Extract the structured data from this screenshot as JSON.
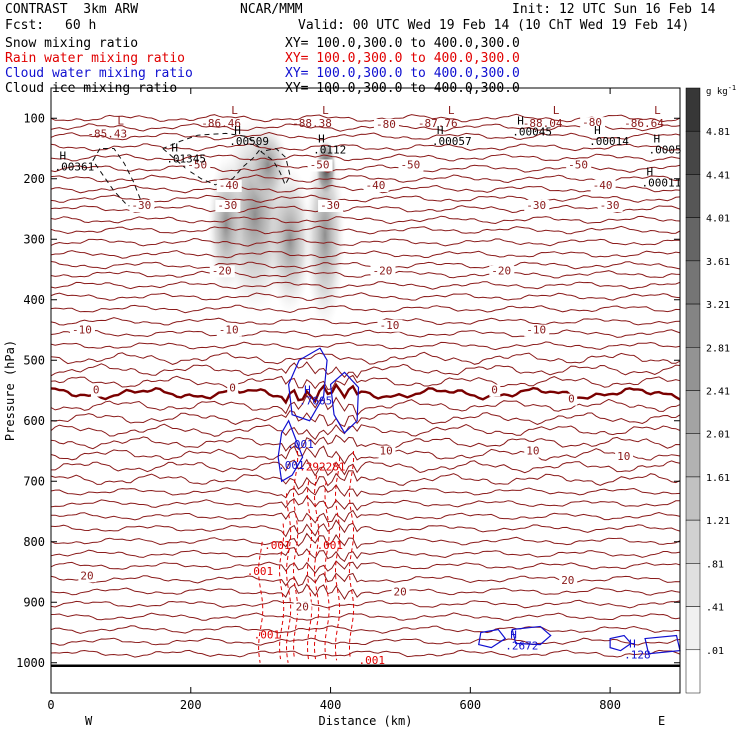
{
  "header": {
    "model": "CONTRAST  3km ARW",
    "center": "NCAR/MMM",
    "init": "Init: 12 UTC Sun 16 Feb 14",
    "fcst_label": "Fcst:",
    "fcst_value": "60 h",
    "valid": "Valid: 00 UTC Wed 19 Feb 14 (10 ChT Wed 19 Feb 14)"
  },
  "fields": [
    {
      "name": "Snow mixing ratio",
      "xy": "XY= 100.0,300.0 to 400.0,300.0",
      "color": "#000000"
    },
    {
      "name": "Rain water mixing ratio",
      "xy": "XY= 100.0,300.0 to 400.0,300.0",
      "color": "#e00000"
    },
    {
      "name": "Cloud water mixing ratio",
      "xy": "XY= 100.0,300.0 to 400.0,300.0",
      "color": "#1010d0"
    },
    {
      "name": "Cloud ice mixing ratio",
      "xy": "XY= 100.0,300.0 to 400.0,300.0",
      "color": "#000000"
    }
  ],
  "chart_data": {
    "type": "contour",
    "xlabel": "Distance (km)",
    "ylabel": "Pressure (hPa)",
    "xlim": [
      0,
      900
    ],
    "ylim": [
      1050,
      50
    ],
    "x_ticks": [
      0,
      200,
      400,
      600,
      800
    ],
    "y_ticks": [
      100,
      200,
      300,
      400,
      500,
      600,
      700,
      800,
      900,
      1000
    ],
    "x_ends": {
      "left": "W",
      "right": "E"
    },
    "colorbar": {
      "unit": "g kg",
      "unit_exp": "-1",
      "levels": [
        "4.81",
        "4.41",
        "4.01",
        "3.61",
        "3.21",
        "2.81",
        "2.41",
        "2.01",
        "1.61",
        "1.21",
        ".81",
        ".41",
        ".01"
      ]
    },
    "temperature_labels": [
      {
        "x": 195,
        "p": 183,
        "text": "-50"
      },
      {
        "x": 370,
        "p": 183,
        "text": "-50"
      },
      {
        "x": 500,
        "p": 183,
        "text": "-50"
      },
      {
        "x": 740,
        "p": 183,
        "text": "-50"
      },
      {
        "x": 465,
        "p": 116,
        "text": "-80"
      },
      {
        "x": 760,
        "p": 113,
        "text": "-80"
      },
      {
        "x": 240,
        "p": 217,
        "text": "-40"
      },
      {
        "x": 450,
        "p": 217,
        "text": "-40"
      },
      {
        "x": 775,
        "p": 217,
        "text": "-40"
      },
      {
        "x": 115,
        "p": 250,
        "text": "-30"
      },
      {
        "x": 238,
        "p": 250,
        "text": "-30"
      },
      {
        "x": 385,
        "p": 250,
        "text": "-30"
      },
      {
        "x": 680,
        "p": 250,
        "text": "-30"
      },
      {
        "x": 785,
        "p": 250,
        "text": "-30"
      },
      {
        "x": 230,
        "p": 358,
        "text": "-20"
      },
      {
        "x": 460,
        "p": 358,
        "text": "-20"
      },
      {
        "x": 630,
        "p": 358,
        "text": "-20"
      },
      {
        "x": 30,
        "p": 456,
        "text": "-10"
      },
      {
        "x": 240,
        "p": 456,
        "text": "-10"
      },
      {
        "x": 470,
        "p": 448,
        "text": "-10"
      },
      {
        "x": 680,
        "p": 456,
        "text": "-10"
      },
      {
        "x": 60,
        "p": 555,
        "text": "0"
      },
      {
        "x": 255,
        "p": 552,
        "text": "0"
      },
      {
        "x": 630,
        "p": 555,
        "text": "0"
      },
      {
        "x": 740,
        "p": 570,
        "text": "0"
      },
      {
        "x": 470,
        "p": 656,
        "text": "10"
      },
      {
        "x": 680,
        "p": 656,
        "text": "10"
      },
      {
        "x": 810,
        "p": 665,
        "text": "10"
      },
      {
        "x": 42,
        "p": 862,
        "text": "20"
      },
      {
        "x": 490,
        "p": 889,
        "text": "20"
      },
      {
        "x": 350,
        "p": 914,
        "text": "20"
      },
      {
        "x": 730,
        "p": 870,
        "text": "20"
      }
    ],
    "low_marks": [
      {
        "x": 52,
        "p": 102,
        "L": "L",
        "value": "-85.43"
      },
      {
        "x": 215,
        "p": 85,
        "L": "L",
        "value": "-86.46"
      },
      {
        "x": 345,
        "p": 85,
        "L": "L",
        "value": "-88.38"
      },
      {
        "x": 525,
        "p": 85,
        "L": "L",
        "value": "-87.76"
      },
      {
        "x": 675,
        "p": 85,
        "L": "L",
        "value": "-88.04"
      },
      {
        "x": 820,
        "p": 85,
        "L": "L",
        "value": "-86.64"
      }
    ],
    "high_marks": [
      {
        "x": 5,
        "p": 168,
        "value": ".00361",
        "color": "#000000"
      },
      {
        "x": 165,
        "p": 155,
        "value": ".01345",
        "color": "#000000"
      },
      {
        "x": 255,
        "p": 126,
        "value": ".00509",
        "color": "#000000"
      },
      {
        "x": 375,
        "p": 140,
        "value": ".0112",
        "color": "#000000"
      },
      {
        "x": 545,
        "p": 126,
        "value": ".00057",
        "color": "#000000"
      },
      {
        "x": 660,
        "p": 110,
        "value": ".00045",
        "color": "#000000"
      },
      {
        "x": 770,
        "p": 126,
        "value": ".00014",
        "color": "#000000"
      },
      {
        "x": 855,
        "p": 140,
        "value": ".0005",
        "color": "#000000"
      },
      {
        "x": 845,
        "p": 195,
        "value": ".00011",
        "color": "#000000"
      },
      {
        "x": 355,
        "p": 555,
        "value": ".7605",
        "color": "#1010d0"
      },
      {
        "x": 650,
        "p": 960,
        "value": ".2672",
        "color": "#1010d0"
      },
      {
        "x": 820,
        "p": 975,
        "value": ".128",
        "color": "#1010d0"
      }
    ],
    "small_labels": [
      {
        "x": 338,
        "p": 645,
        "text": ".001",
        "color": "#1010d0"
      },
      {
        "x": 325,
        "p": 680,
        "text": ".001",
        "color": "#1010d0"
      },
      {
        "x": 355,
        "p": 682,
        "text": ".292281",
        "color": "#e00000"
      },
      {
        "x": 305,
        "p": 812,
        "text": ".001",
        "color": "#e00000"
      },
      {
        "x": 380,
        "p": 812,
        "text": ".001",
        "color": "#e00000"
      },
      {
        "x": 280,
        "p": 855,
        "text": ".001",
        "color": "#e00000"
      },
      {
        "x": 290,
        "p": 960,
        "text": ".001",
        "color": "#e00000"
      },
      {
        "x": 440,
        "p": 1002,
        "text": ".001",
        "color": "#e00000"
      }
    ]
  }
}
